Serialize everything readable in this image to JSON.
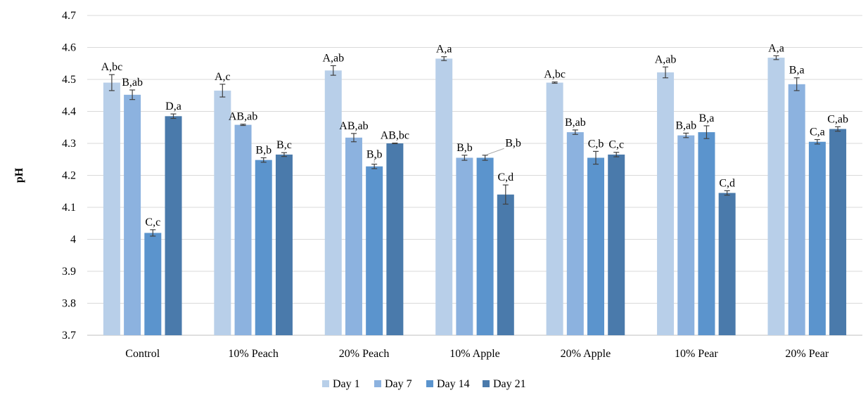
{
  "chart_data": {
    "type": "bar",
    "title": "",
    "xlabel": "",
    "ylabel": "pH",
    "ylim": [
      3.7,
      4.7
    ],
    "yticks": [
      3.7,
      3.8,
      3.9,
      4,
      4.1,
      4.2,
      4.3,
      4.4,
      4.5,
      4.6,
      4.7
    ],
    "ytick_labels": [
      "3.7",
      "3.8",
      "3.9",
      "4",
      "4.1",
      "4.2",
      "4.3",
      "4.4",
      "4.5",
      "4.6",
      "4.7"
    ],
    "grid": true,
    "legend_position": "bottom",
    "categories": [
      "Control",
      "10% Peach",
      "20% Peach",
      "10% Apple",
      "20% Apple",
      "10% Pear",
      "20% Pear"
    ],
    "series": [
      {
        "name": "Day 1",
        "color": "#b8cfe9",
        "values": [
          4.49,
          4.465,
          4.528,
          4.565,
          4.49,
          4.522,
          4.568
        ],
        "errors": [
          0.025,
          0.02,
          0.015,
          0.006,
          0.002,
          0.017,
          0.006
        ],
        "labels": [
          "A,bc",
          "A,c",
          "A,ab",
          "A,a",
          "A,bc",
          "A,ab",
          "A,a"
        ]
      },
      {
        "name": "Day 7",
        "color": "#8cb2df",
        "values": [
          4.452,
          4.358,
          4.318,
          4.255,
          4.335,
          4.325,
          4.485
        ],
        "errors": [
          0.015,
          0.002,
          0.013,
          0.008,
          0.007,
          0.007,
          0.02
        ],
        "labels": [
          "B,ab",
          "AB,ab",
          "AB,ab",
          "B,b",
          "B,ab",
          "B,ab",
          "B,a"
        ]
      },
      {
        "name": "Day 14",
        "color": "#5b94cd",
        "values": [
          4.02,
          4.248,
          4.228,
          4.255,
          4.255,
          4.335,
          4.305
        ],
        "errors": [
          0.01,
          0.007,
          0.007,
          0.008,
          0.02,
          0.02,
          0.007
        ],
        "labels": [
          "C,c",
          "B,b",
          "B,b",
          "B,b",
          "C,b",
          "B,a",
          "C,a"
        ]
      },
      {
        "name": "Day 21",
        "color": "#4a7aab",
        "values": [
          4.385,
          4.265,
          4.3,
          4.14,
          4.265,
          4.145,
          4.345
        ],
        "errors": [
          0.007,
          0.006,
          0.001,
          0.03,
          0.007,
          0.007,
          0.007
        ],
        "labels": [
          "D,a",
          "B,c",
          "AB,bc",
          "C,d",
          "C,c",
          "C,d",
          "C,ab"
        ]
      }
    ]
  }
}
